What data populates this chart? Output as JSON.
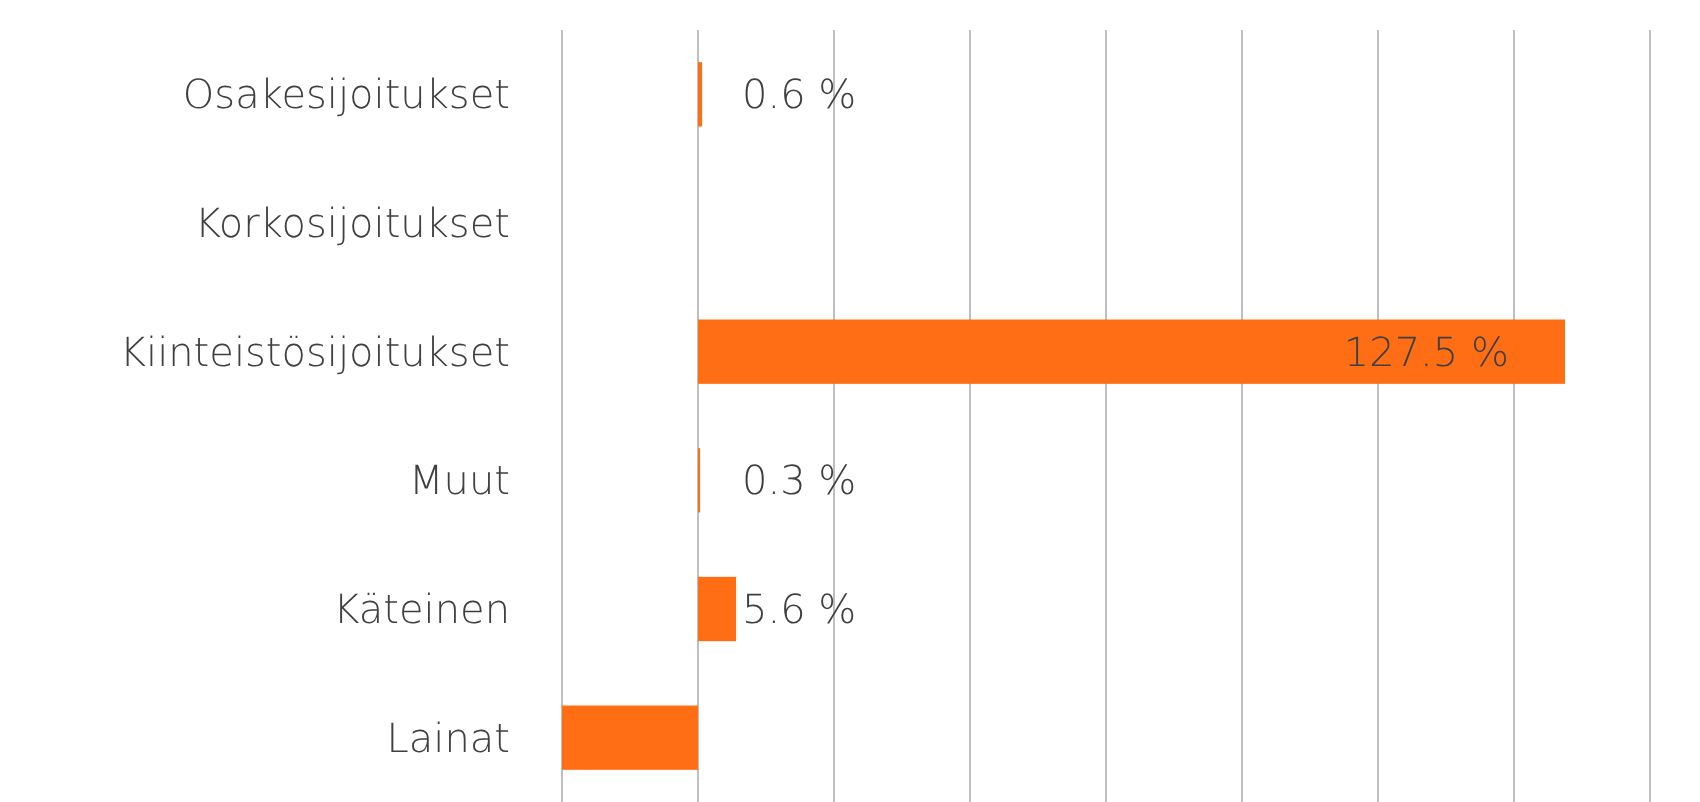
{
  "chart_data": {
    "type": "bar",
    "orientation": "horizontal",
    "categories": [
      "Osakesijoitukset",
      "Korkosijoitukset",
      "Kiinteistösijoitukset",
      "Muut",
      "Käteinen",
      "Lainat"
    ],
    "values": [
      0.6,
      null,
      127.5,
      0.3,
      5.6,
      -20
    ],
    "value_labels": [
      "0.6 %",
      null,
      "127.5 %",
      "0.3 %",
      "5.6 %",
      null
    ],
    "color": "#ff6e14",
    "xlim": [
      -20,
      140
    ],
    "xticks": [
      {
        "value": -20,
        "label": null
      },
      {
        "value": 0,
        "label": null
      },
      {
        "value": 20,
        "label": null
      },
      {
        "value": 40,
        "label": null
      },
      {
        "value": 60,
        "label": null
      },
      {
        "value": 80,
        "label": null
      },
      {
        "value": 100,
        "label": null
      },
      {
        "value": 120,
        "label": null
      },
      {
        "value": 140,
        "label": null
      }
    ],
    "grid": "x",
    "tick_labels": "y"
  }
}
